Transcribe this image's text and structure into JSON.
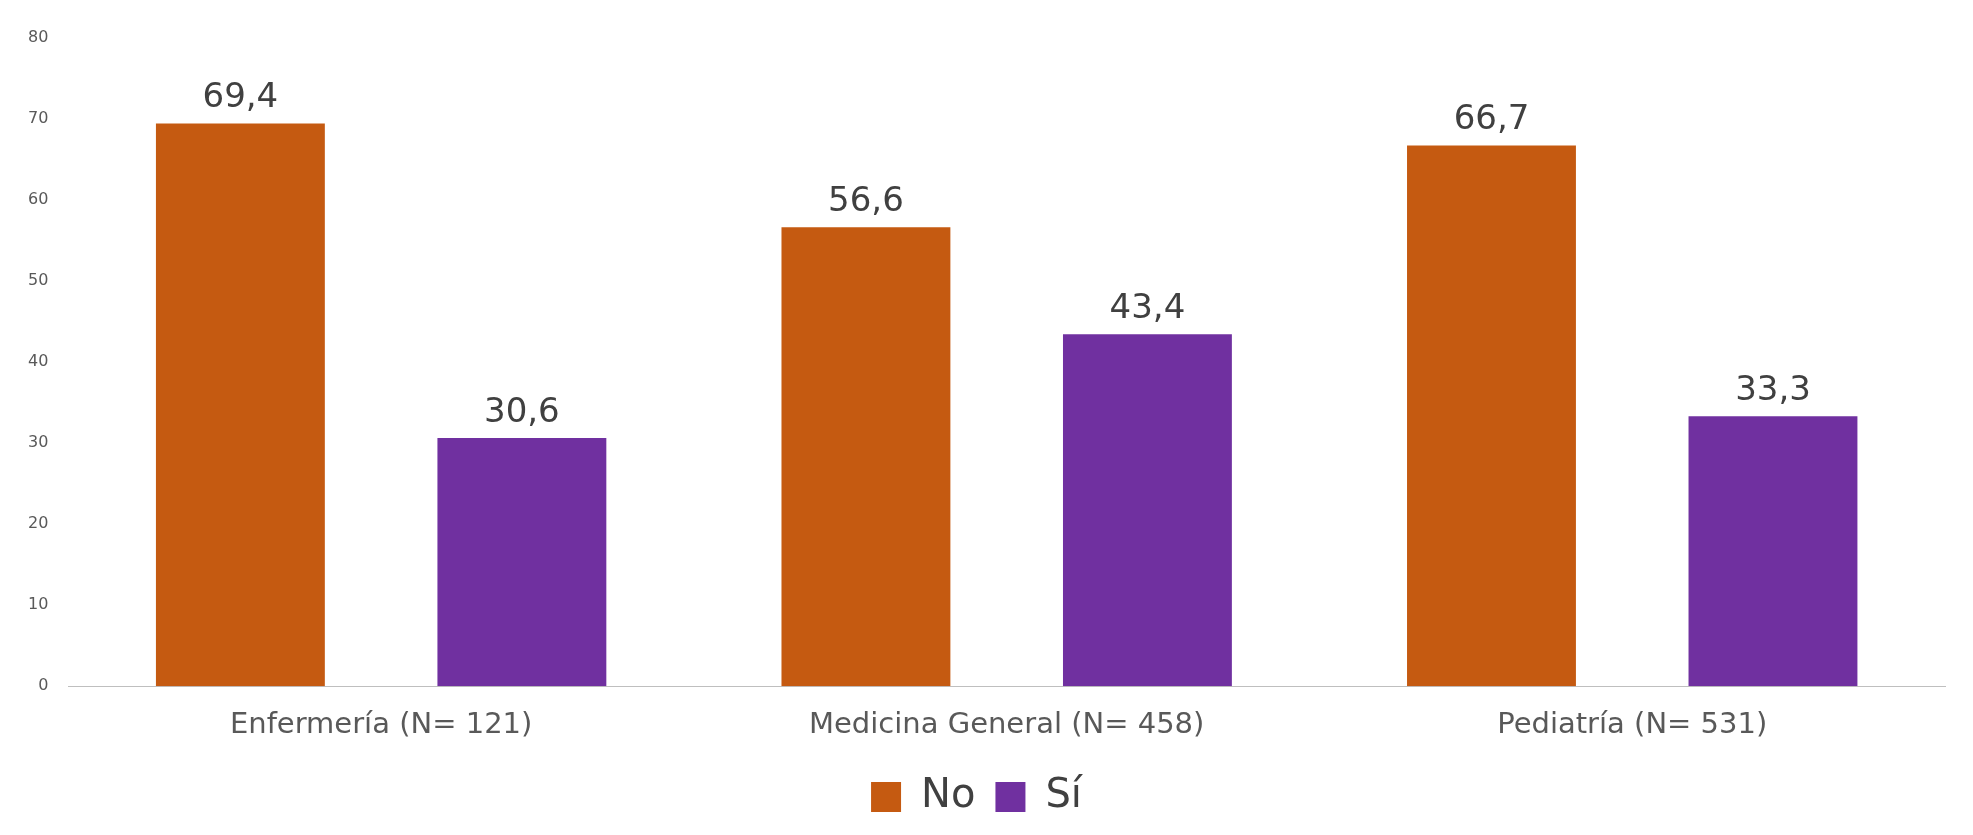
{
  "chart_data": {
    "type": "bar",
    "categories": [
      "Enfermería (N= 121)",
      "Medicina General (N= 458)",
      "Pediatría (N= 531)"
    ],
    "series": [
      {
        "name": "No",
        "color": "#c55a11",
        "values": [
          69.4,
          56.6,
          66.7
        ],
        "value_labels": [
          "69,4",
          "56,6",
          "66,7"
        ]
      },
      {
        "name": "Sí",
        "color": "#7030a0",
        "values": [
          30.6,
          43.4,
          33.3
        ],
        "value_labels": [
          "30,6",
          "43,4",
          "33,3"
        ]
      }
    ],
    "ylim": [
      0,
      80
    ],
    "yticks": [
      0,
      10,
      20,
      30,
      40,
      50,
      60,
      70,
      80
    ],
    "grid": false,
    "legend": "bottom"
  }
}
